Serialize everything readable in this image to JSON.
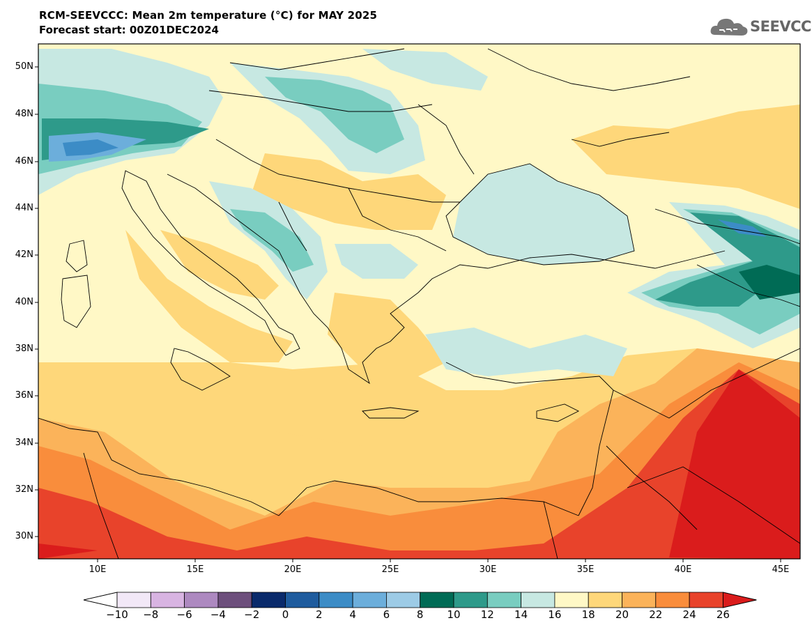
{
  "title": "RCM-SEEVCCC: Mean 2m temperature (°C) for MAY 2025",
  "subtitle": "Forecast start: 00Z01DEC2024",
  "logo": {
    "name": "cloud-logo-icon",
    "text": "SEEVCCC"
  },
  "lat_labels": [
    "50N",
    "48N",
    "46N",
    "44N",
    "42N",
    "40N",
    "38N",
    "36N",
    "34N",
    "32N",
    "30N"
  ],
  "lon_labels": [
    "10E",
    "15E",
    "20E",
    "25E",
    "30E",
    "35E",
    "40E",
    "45E"
  ],
  "colorbar": {
    "labels": [
      "-10",
      "-8",
      "-6",
      "-4",
      "-2",
      "0",
      "2",
      "4",
      "6",
      "8",
      "10",
      "12",
      "14",
      "16",
      "18",
      "20",
      "22",
      "24",
      "26"
    ],
    "colors": [
      "#ffffff",
      "#f2e8f7",
      "#d8b4e2",
      "#ad89c0",
      "#6d4f7c",
      "#0a2a6b",
      "#1f5c9e",
      "#3c8cc6",
      "#6caedb",
      "#9dcbe6",
      "#006b55",
      "#2e9a8a",
      "#79cdc0",
      "#c7e8e2",
      "#fff8c6",
      "#fed77a",
      "#fbb35a",
      "#f98d3c",
      "#e8432b",
      "#da1c1c"
    ]
  }
}
